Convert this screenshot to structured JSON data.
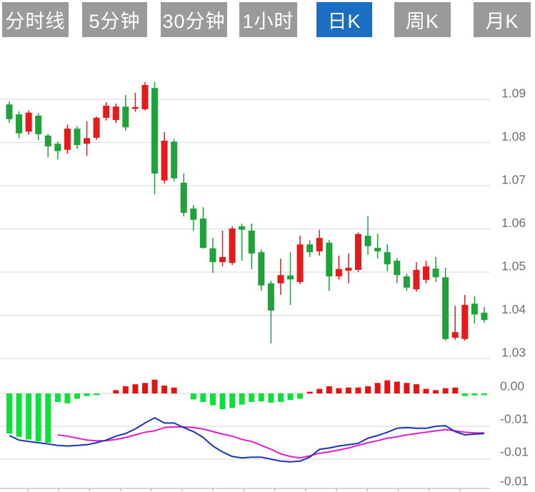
{
  "toolbar": {
    "buttons": [
      {
        "label": "分时线",
        "active": false
      },
      {
        "label": "5分钟",
        "active": false
      },
      {
        "label": "30分钟",
        "active": false
      },
      {
        "label": "1小时",
        "active": false
      },
      {
        "label": "日K",
        "active": true
      },
      {
        "label": "周K",
        "active": false
      },
      {
        "label": "月K",
        "active": false
      }
    ],
    "active_bg": "#1b6ec2",
    "inactive_bg": "#9a9a9a",
    "text_color": "#ffffff"
  },
  "colors": {
    "bull_candle": "#e51a1a",
    "bear_candle": "#1fa239",
    "hist_up": "#e51414",
    "hist_down": "#0ae23a",
    "dif_line": "#1d34b0",
    "dea_line": "#e01ec8",
    "grid": "#dddddd",
    "axis_line": "#c8c8c8",
    "tick": "#b5b5b5",
    "axis_text": "#707070"
  },
  "chart_data": {
    "type": "candlestick",
    "title": "Daily K-line (日K) with MACD sub-panel",
    "convention": "red = up (bullish), green = down (bearish)",
    "grid": true,
    "legend": "none",
    "x_count": 50,
    "panels": [
      {
        "name": "price",
        "type": "candlestick",
        "y_ticks": [
          1.09,
          1.08,
          1.07,
          1.06,
          1.05,
          1.04,
          1.03
        ],
        "y_tick_labels": [
          "1.09",
          "1.08",
          "1.07",
          "1.06",
          "1.05",
          "1.04",
          "1.03"
        ],
        "ylim": [
          1.0285,
          1.0965
        ],
        "ohlc": [
          [
            1.0888,
            1.0895,
            1.0845,
            1.0854
          ],
          [
            1.0865,
            1.0872,
            1.081,
            1.0821
          ],
          [
            1.0825,
            1.0874,
            1.0818,
            1.0869
          ],
          [
            1.0862,
            1.0868,
            1.0805,
            1.0819
          ],
          [
            1.0816,
            1.082,
            1.0766,
            1.0791
          ],
          [
            1.0797,
            1.0802,
            1.0761,
            1.078
          ],
          [
            1.0783,
            1.0841,
            1.0774,
            1.0832
          ],
          [
            1.0832,
            1.0838,
            1.0785,
            1.0794
          ],
          [
            1.0797,
            1.0849,
            1.0769,
            1.081
          ],
          [
            1.0811,
            1.086,
            1.0806,
            1.0857
          ],
          [
            1.0857,
            1.0893,
            1.0851,
            1.0885
          ],
          [
            1.0852,
            1.089,
            1.0845,
            1.0883
          ],
          [
            1.0883,
            1.091,
            1.0827,
            1.0835
          ],
          [
            1.0878,
            1.0915,
            1.0871,
            1.0882
          ],
          [
            1.0877,
            1.094,
            1.0874,
            1.0933
          ],
          [
            1.0926,
            1.094,
            1.068,
            1.0728
          ],
          [
            1.0712,
            1.0824,
            1.0705,
            1.0804
          ],
          [
            1.0802,
            1.0808,
            1.071,
            1.0717
          ],
          [
            1.0707,
            1.0728,
            1.0629,
            1.0637
          ],
          [
            1.0647,
            1.0655,
            1.0596,
            1.0621
          ],
          [
            1.0624,
            1.065,
            1.0554,
            1.0556
          ],
          [
            1.0555,
            1.0579,
            1.0498,
            1.0523
          ],
          [
            1.0523,
            1.0596,
            1.0513,
            1.0535
          ],
          [
            1.0521,
            1.0606,
            1.0516,
            1.0601
          ],
          [
            1.0606,
            1.0612,
            1.0526,
            1.0598
          ],
          [
            1.0596,
            1.0612,
            1.0507,
            1.0543
          ],
          [
            1.0546,
            1.0552,
            1.0457,
            1.0469
          ],
          [
            1.0474,
            1.048,
            1.0335,
            1.0411
          ],
          [
            1.0474,
            1.0531,
            1.0447,
            1.0493
          ],
          [
            1.0492,
            1.0546,
            1.0424,
            1.0483
          ],
          [
            1.0477,
            1.0584,
            1.0472,
            1.0564
          ],
          [
            1.0564,
            1.0574,
            1.0535,
            1.0546
          ],
          [
            1.0548,
            1.0598,
            1.0538,
            1.0579
          ],
          [
            1.0568,
            1.0574,
            1.0457,
            1.049
          ],
          [
            1.049,
            1.0538,
            1.0483,
            1.0507
          ],
          [
            1.0503,
            1.0543,
            1.0474,
            1.051
          ],
          [
            1.0505,
            1.0592,
            1.05,
            1.0588
          ],
          [
            1.0584,
            1.0629,
            1.054,
            1.056
          ],
          [
            1.0556,
            1.0589,
            1.0531,
            1.0548
          ],
          [
            1.0546,
            1.0564,
            1.0502,
            1.0518
          ],
          [
            1.0526,
            1.0532,
            1.0474,
            1.0493
          ],
          [
            1.049,
            1.0496,
            1.0457,
            1.0464
          ],
          [
            1.046,
            1.0523,
            1.0455,
            1.0505
          ],
          [
            1.0482,
            1.0526,
            1.0474,
            1.0513
          ],
          [
            1.0508,
            1.0535,
            1.0477,
            1.0488
          ],
          [
            1.0488,
            1.051,
            1.0341,
            1.0345
          ],
          [
            1.0348,
            1.0422,
            1.0343,
            1.0361
          ],
          [
            1.0345,
            1.0447,
            1.0341,
            1.0424
          ],
          [
            1.0427,
            1.0444,
            1.0381,
            1.0402
          ],
          [
            1.0406,
            1.0419,
            1.0383,
            1.0389
          ]
        ]
      },
      {
        "name": "macd",
        "type": "macd",
        "y_tick_labels": [
          "0.00",
          "-0.01",
          "-0.01",
          "-0.01"
        ],
        "histogram": [
          -0.0061,
          -0.0066,
          -0.007,
          -0.0073,
          -0.0075,
          -0.0013,
          -0.0015,
          -0.0008,
          -0.0004,
          -0.0002,
          0,
          0.0005,
          0.0011,
          0.0014,
          0.0016,
          0.0021,
          0.0012,
          0.0009,
          0,
          -0.0009,
          -0.0013,
          -0.0018,
          -0.0024,
          -0.0022,
          -0.0017,
          -0.0013,
          -0.0012,
          -0.0014,
          -0.0013,
          -0.001,
          -0.0008,
          0.0002,
          0.0007,
          0.0011,
          0.0008,
          0.0009,
          0.0009,
          0.0011,
          0.0016,
          0.002,
          0.0018,
          0.0016,
          0.0014,
          0.0007,
          0.0005,
          0.0008,
          0.0009,
          -0.0004,
          -0.0003,
          -0.0002
        ],
        "dif": [
          -0.0064,
          -0.0071,
          -0.0073,
          -0.0075,
          -0.0077,
          -0.0079,
          -0.008,
          -0.0079,
          -0.0078,
          -0.0075,
          -0.0071,
          -0.0065,
          -0.0061,
          -0.0054,
          -0.0045,
          -0.0037,
          -0.0045,
          -0.0045,
          -0.0052,
          -0.0058,
          -0.0067,
          -0.008,
          -0.0089,
          -0.0096,
          -0.0098,
          -0.0097,
          -0.0097,
          -0.01,
          -0.0103,
          -0.0104,
          -0.0103,
          -0.0097,
          -0.0085,
          -0.0083,
          -0.008,
          -0.0078,
          -0.0076,
          -0.0068,
          -0.0064,
          -0.0059,
          -0.0053,
          -0.0052,
          -0.0053,
          -0.0053,
          -0.005,
          -0.0049,
          -0.0058,
          -0.0063,
          -0.0062,
          -0.0061
        ],
        "dea": [
          null,
          null,
          null,
          null,
          null,
          -0.0063,
          -0.0065,
          -0.0068,
          -0.0071,
          -0.0072,
          -0.0072,
          -0.007,
          -0.0067,
          -0.0063,
          -0.0059,
          -0.0057,
          -0.0052,
          -0.0051,
          -0.0051,
          -0.0052,
          -0.0054,
          -0.0058,
          -0.0062,
          -0.0065,
          -0.007,
          -0.0073,
          -0.0079,
          -0.0085,
          -0.0092,
          -0.0096,
          -0.0098,
          -0.0095,
          -0.0091,
          -0.0089,
          -0.0086,
          -0.0083,
          -0.0079,
          -0.0075,
          -0.0072,
          -0.0068,
          -0.0066,
          -0.0063,
          -0.0061,
          -0.0059,
          -0.0057,
          -0.0055,
          -0.0057,
          -0.0059,
          -0.006,
          -0.006
        ]
      }
    ]
  }
}
